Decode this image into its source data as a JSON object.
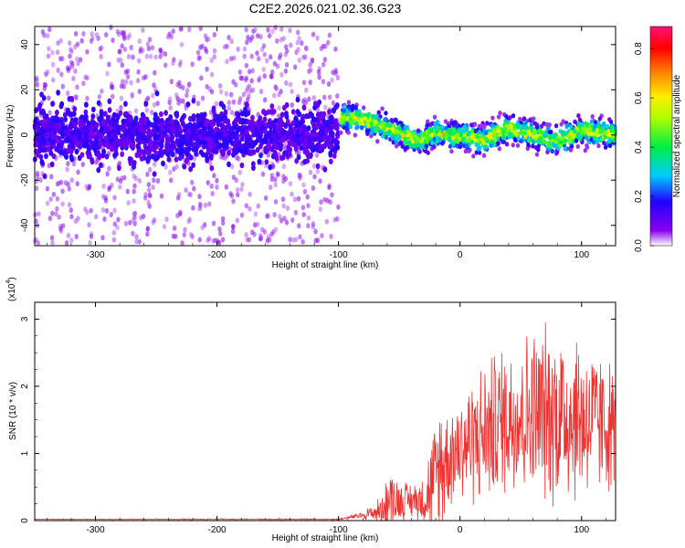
{
  "title": "C2E2.2026.021.02.36.G23",
  "chart_data": [
    {
      "type": "heatmap",
      "xlabel": "Height of straight line (km)",
      "ylabel": "Frequency (Hz)",
      "xlim": [
        -350,
        128
      ],
      "ylim": [
        -49,
        48
      ],
      "xticks": [
        -300,
        -200,
        -100,
        0,
        100
      ],
      "yticks": [
        -40,
        -20,
        0,
        20,
        40
      ],
      "colorbar": {
        "label": "Normalized spectral amplitude",
        "range": [
          0,
          0.89
        ],
        "ticks": [
          0.0,
          0.2,
          0.4,
          0.6,
          0.8
        ],
        "colormap": "rainbow: white-violet-blue-cyan-green-yellow-orange-red-pink"
      },
      "regions": [
        {
          "x_range": [
            -350,
            -100
          ],
          "description": "broad noisy band",
          "center_freq_hz": 0,
          "core_halfwidth_hz": 10,
          "scatter_to_hz": 48,
          "amplitude": 0.1
        },
        {
          "x_range": [
            -100,
            128
          ],
          "description": "narrow strong band",
          "center_freq_hz": [
            [
              -98,
              8
            ],
            [
              -85,
              7
            ],
            [
              -70,
              5
            ],
            [
              -50,
              1
            ],
            [
              -35,
              -3
            ],
            [
              -20,
              1
            ],
            [
              0,
              -1
            ],
            [
              20,
              -2
            ],
            [
              40,
              3
            ],
            [
              60,
              0
            ],
            [
              80,
              -3
            ],
            [
              100,
              2
            ],
            [
              128,
              0
            ]
          ],
          "core_halfwidth_hz": 4,
          "amplitude": 0.55
        }
      ]
    },
    {
      "type": "line",
      "xlabel": "Height of straight line (km)",
      "ylabel": "SNR (10 * v/v)",
      "scale_label": "(x10",
      "scale_exponent": "4",
      "xlim": [
        -350,
        128
      ],
      "ylim": [
        0,
        3.25
      ],
      "xticks": [
        -300,
        -200,
        -100,
        0,
        100
      ],
      "yticks": [
        0,
        1,
        2,
        3
      ],
      "series_color": "#ee3333",
      "envelope": {
        "x": [
          -350,
          -100,
          -80,
          -65,
          -58,
          -50,
          -40,
          -30,
          -20,
          -15,
          -10,
          0,
          20,
          40,
          60,
          80,
          100,
          115,
          128
        ],
        "mean": [
          0.02,
          0.02,
          0.08,
          0.15,
          0.35,
          0.3,
          0.3,
          0.32,
          0.6,
          0.85,
          0.95,
          1.1,
          1.3,
          1.55,
          1.6,
          1.6,
          1.55,
          1.45,
          1.4
        ],
        "amplitude": [
          0.005,
          0.01,
          0.05,
          0.2,
          0.4,
          0.3,
          0.25,
          0.35,
          0.9,
          1.1,
          0.7,
          0.8,
          1.0,
          1.1,
          1.2,
          1.3,
          1.2,
          1.0,
          0.9
        ]
      }
    }
  ]
}
